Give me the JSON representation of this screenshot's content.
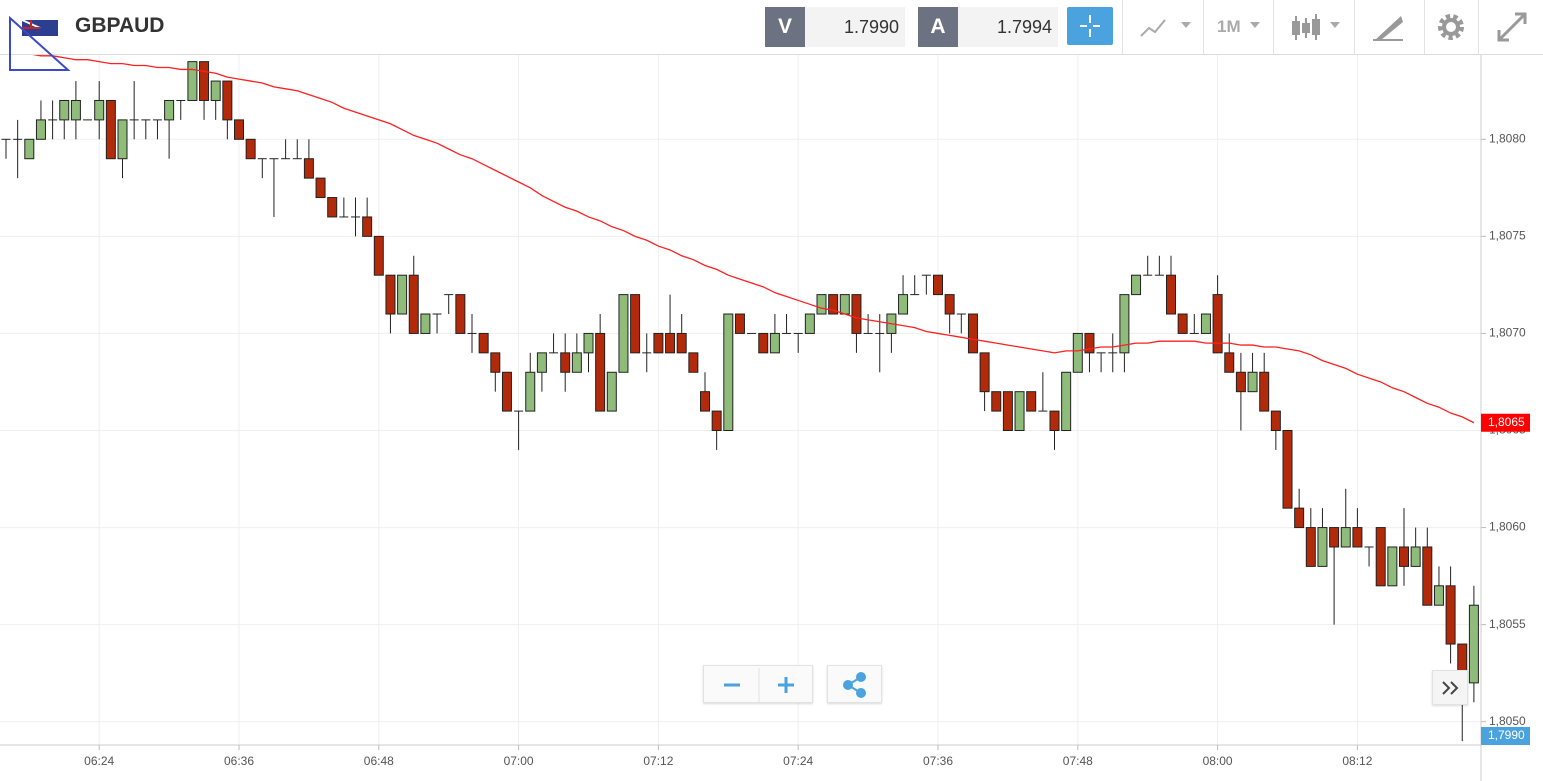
{
  "header": {
    "symbol": "GBPAUD",
    "bid_label": "V",
    "bid": "1.7990",
    "ask_label": "A",
    "ask": "1.7994",
    "interval": "1M"
  },
  "chart_data": {
    "type": "candlestick",
    "categories": [
      null,
      null,
      null,
      null,
      null,
      null,
      null,
      null,
      "06:24",
      null,
      null,
      null,
      null,
      null,
      null,
      null,
      null,
      null,
      null,
      null,
      "06:36",
      null,
      null,
      null,
      null,
      null,
      null,
      null,
      null,
      null,
      null,
      null,
      "06:48",
      null,
      null,
      null,
      null,
      null,
      null,
      null,
      null,
      null,
      null,
      null,
      "07:00",
      null,
      null,
      null,
      null,
      null,
      null,
      null,
      null,
      null,
      null,
      null,
      "07:12",
      null,
      null,
      null,
      null,
      null,
      null,
      null,
      null,
      null,
      null,
      null,
      "07:24",
      null,
      null,
      null,
      null,
      null,
      null,
      null,
      null,
      null,
      null,
      null,
      "07:36",
      null,
      null,
      null,
      null,
      null,
      null,
      null,
      null,
      null,
      null,
      null,
      "07:48",
      null,
      null,
      null,
      null,
      null,
      null,
      null,
      null,
      null,
      null,
      null,
      "08:00",
      null,
      null,
      null,
      null,
      null,
      null,
      null,
      null,
      null,
      null,
      null,
      "08:12",
      null,
      null,
      null,
      null,
      null,
      null,
      null,
      null,
      null,
      null
    ],
    "open": [
      1.808,
      1.808,
      1.8079,
      1.808,
      1.8081,
      1.8081,
      1.8081,
      1.8081,
      1.8081,
      1.8082,
      1.8079,
      1.8081,
      1.8081,
      1.8081,
      1.8081,
      1.8082,
      1.8082,
      1.8084,
      1.8082,
      1.8083,
      1.8081,
      1.808,
      1.8079,
      1.8079,
      1.8079,
      1.8079,
      1.8079,
      1.8078,
      1.8077,
      1.8076,
      1.8076,
      1.8076,
      1.8075,
      1.8073,
      1.8071,
      1.8073,
      1.807,
      1.8071,
      1.8072,
      1.8072,
      1.807,
      1.807,
      1.8069,
      1.8068,
      1.8066,
      1.8066,
      1.8068,
      1.8069,
      1.8069,
      1.8068,
      1.8069,
      1.807,
      1.8066,
      1.8068,
      1.8072,
      1.8069,
      1.807,
      1.807,
      1.807,
      1.8069,
      1.8067,
      1.8066,
      1.8065,
      1.8071,
      1.807,
      1.807,
      1.8069,
      1.807,
      1.807,
      1.807,
      1.8071,
      1.8072,
      1.8071,
      1.8072,
      1.807,
      1.807,
      1.807,
      1.8071,
      1.8072,
      1.8073,
      1.8073,
      1.8072,
      1.8071,
      1.8071,
      1.8069,
      1.8067,
      1.8067,
      1.8065,
      1.8067,
      1.8066,
      1.8066,
      1.8065,
      1.8068,
      1.807,
      1.8069,
      1.8069,
      1.8069,
      1.8072,
      1.8073,
      1.8073,
      1.8073,
      1.8071,
      1.807,
      1.807,
      1.8072,
      1.8069,
      1.8068,
      1.8067,
      1.8068,
      1.8066,
      1.8065,
      1.8061,
      1.806,
      1.8058,
      1.806,
      1.8059,
      1.806,
      1.8059,
      1.806,
      1.8057,
      1.8059,
      1.8058,
      1.8059,
      1.8056,
      1.8057,
      1.8054,
      1.8052
    ],
    "high": [
      1.808,
      1.8081,
      1.808,
      1.8082,
      1.8082,
      1.8082,
      1.8083,
      1.8081,
      1.8083,
      1.8082,
      1.8081,
      1.8083,
      1.8081,
      1.8081,
      1.8082,
      1.8082,
      1.8084,
      1.8084,
      1.8083,
      1.8083,
      1.8081,
      1.808,
      1.8079,
      1.8079,
      1.808,
      1.808,
      1.808,
      1.8078,
      1.8077,
      1.8077,
      1.8077,
      1.8077,
      1.8075,
      1.8073,
      1.8073,
      1.8074,
      1.8071,
      1.8071,
      1.8072,
      1.8072,
      1.8071,
      1.807,
      1.8069,
      1.8068,
      1.8066,
      1.8069,
      1.8069,
      1.807,
      1.807,
      1.807,
      1.807,
      1.8071,
      1.8068,
      1.8072,
      1.8072,
      1.807,
      1.807,
      1.8072,
      1.8071,
      1.8069,
      1.8068,
      1.8066,
      1.8071,
      1.8071,
      1.807,
      1.807,
      1.8071,
      1.8071,
      1.807,
      1.8071,
      1.8072,
      1.8072,
      1.8072,
      1.8072,
      1.8071,
      1.8071,
      1.8071,
      1.8073,
      1.8073,
      1.8073,
      1.8073,
      1.8072,
      1.8071,
      1.8071,
      1.8069,
      1.8067,
      1.8067,
      1.8067,
      1.8067,
      1.8068,
      1.8066,
      1.8068,
      1.807,
      1.807,
      1.8069,
      1.807,
      1.8072,
      1.8073,
      1.8074,
      1.8074,
      1.8074,
      1.8071,
      1.8071,
      1.8071,
      1.8073,
      1.807,
      1.8069,
      1.8069,
      1.8069,
      1.8066,
      1.8065,
      1.8062,
      1.8061,
      1.8061,
      1.806,
      1.8062,
      1.8061,
      1.8059,
      1.806,
      1.8059,
      1.8061,
      1.806,
      1.806,
      1.8058,
      1.8058,
      1.8054,
      1.8057
    ],
    "low": [
      1.8079,
      1.8078,
      1.8079,
      1.808,
      1.808,
      1.808,
      1.808,
      1.8081,
      1.808,
      1.8079,
      1.8078,
      1.808,
      1.808,
      1.808,
      1.8079,
      1.8081,
      1.8082,
      1.8081,
      1.8081,
      1.808,
      1.808,
      1.8079,
      1.8078,
      1.8076,
      1.8079,
      1.8079,
      1.8078,
      1.8077,
      1.8076,
      1.8076,
      1.8075,
      1.8075,
      1.8073,
      1.807,
      1.8071,
      1.807,
      1.807,
      1.807,
      1.8071,
      1.807,
      1.8069,
      1.8069,
      1.8067,
      1.8066,
      1.8064,
      1.8066,
      1.8067,
      1.8069,
      1.8067,
      1.8068,
      1.8068,
      1.8066,
      1.8066,
      1.8068,
      1.8069,
      1.8068,
      1.8069,
      1.8069,
      1.8069,
      1.8068,
      1.8066,
      1.8064,
      1.8065,
      1.807,
      1.807,
      1.8069,
      1.8069,
      1.807,
      1.8069,
      1.807,
      1.8071,
      1.8071,
      1.8071,
      1.8069,
      1.807,
      1.8068,
      1.8069,
      1.8071,
      1.8072,
      1.8072,
      1.8072,
      1.807,
      1.807,
      1.8069,
      1.8066,
      1.8066,
      1.8065,
      1.8065,
      1.8066,
      1.8066,
      1.8064,
      1.8065,
      1.8068,
      1.8068,
      1.8068,
      1.8068,
      1.8068,
      1.8072,
      1.8073,
      1.8073,
      1.8071,
      1.807,
      1.807,
      1.807,
      1.8069,
      1.8068,
      1.8065,
      1.8067,
      1.8066,
      1.8064,
      1.8061,
      1.806,
      1.8058,
      1.8058,
      1.8055,
      1.8059,
      1.8059,
      1.8058,
      1.8057,
      1.8057,
      1.8057,
      1.8058,
      1.8056,
      1.8056,
      1.8053,
      1.8049,
      1.8051
    ],
    "close": [
      1.808,
      1.808,
      1.808,
      1.8081,
      1.8081,
      1.8082,
      1.8082,
      1.8081,
      1.8082,
      1.8079,
      1.8081,
      1.8081,
      1.8081,
      1.8081,
      1.8082,
      1.8082,
      1.8084,
      1.8082,
      1.8083,
      1.8081,
      1.808,
      1.8079,
      1.8079,
      1.8079,
      1.8079,
      1.8079,
      1.8078,
      1.8077,
      1.8076,
      1.8076,
      1.8076,
      1.8075,
      1.8073,
      1.8071,
      1.8073,
      1.807,
      1.8071,
      1.8071,
      1.8072,
      1.807,
      1.807,
      1.8069,
      1.8068,
      1.8066,
      1.8066,
      1.8068,
      1.8069,
      1.8069,
      1.8068,
      1.8069,
      1.807,
      1.8066,
      1.8068,
      1.8072,
      1.8069,
      1.8069,
      1.8069,
      1.8069,
      1.8069,
      1.8068,
      1.8066,
      1.8065,
      1.8071,
      1.807,
      1.807,
      1.8069,
      1.807,
      1.807,
      1.807,
      1.8071,
      1.8072,
      1.8071,
      1.8072,
      1.807,
      1.807,
      1.807,
      1.8071,
      1.8072,
      1.8072,
      1.8073,
      1.8072,
      1.8071,
      1.8071,
      1.8069,
      1.8067,
      1.8066,
      1.8065,
      1.8067,
      1.8066,
      1.8066,
      1.8065,
      1.8068,
      1.807,
      1.8069,
      1.8069,
      1.8069,
      1.8072,
      1.8073,
      1.8073,
      1.8073,
      1.8071,
      1.807,
      1.807,
      1.8071,
      1.8069,
      1.8068,
      1.8067,
      1.8068,
      1.8066,
      1.8065,
      1.8061,
      1.806,
      1.8058,
      1.806,
      1.8059,
      1.806,
      1.8059,
      1.8059,
      1.8057,
      1.8059,
      1.8058,
      1.8059,
      1.8056,
      1.8057,
      1.8054,
      1.8052,
      1.8056
    ],
    "up_color": "#8fbc7a",
    "down_color": "#b22a0a",
    "ma": {
      "color": "#ff2020",
      "values": [
        1.80845,
        1.80844,
        1.80844,
        1.80843,
        1.80843,
        1.80842,
        1.80841,
        1.80841,
        1.8084,
        1.80839,
        1.80839,
        1.80838,
        1.80838,
        1.80837,
        1.80837,
        1.80836,
        1.80836,
        1.80835,
        1.80834,
        1.80832,
        1.80831,
        1.8083,
        1.80829,
        1.80827,
        1.80826,
        1.80825,
        1.80823,
        1.80821,
        1.80819,
        1.80816,
        1.80814,
        1.80812,
        1.8081,
        1.80808,
        1.80805,
        1.80802,
        1.808,
        1.80798,
        1.80795,
        1.80792,
        1.8079,
        1.80787,
        1.80784,
        1.80781,
        1.80778,
        1.80775,
        1.80771,
        1.80768,
        1.80765,
        1.80763,
        1.8076,
        1.80758,
        1.80755,
        1.80753,
        1.8075,
        1.80748,
        1.80745,
        1.80743,
        1.8074,
        1.80738,
        1.80735,
        1.80733,
        1.8073,
        1.80728,
        1.80726,
        1.80724,
        1.80721,
        1.80719,
        1.80717,
        1.80715,
        1.80713,
        1.80712,
        1.8071,
        1.80708,
        1.80707,
        1.80706,
        1.80705,
        1.80704,
        1.80703,
        1.80701,
        1.807,
        1.80699,
        1.80698,
        1.80697,
        1.80696,
        1.80695,
        1.80694,
        1.80693,
        1.80692,
        1.80691,
        1.8069,
        1.80691,
        1.80691,
        1.80692,
        1.80693,
        1.80693,
        1.80694,
        1.80695,
        1.80695,
        1.80696,
        1.80696,
        1.80696,
        1.80696,
        1.80695,
        1.80695,
        1.80695,
        1.80694,
        1.80694,
        1.80693,
        1.80693,
        1.80692,
        1.80691,
        1.80689,
        1.80686,
        1.80684,
        1.80682,
        1.80679,
        1.80677,
        1.80675,
        1.80672,
        1.8067,
        1.80667,
        1.80664,
        1.80662,
        1.80659,
        1.80657,
        1.80654
      ]
    },
    "ylim": [
      1.80488,
      1.80846
    ],
    "yticks": [
      {
        "value": 1.805,
        "label": "1,8050"
      },
      {
        "value": 1.8055,
        "label": "1,8055"
      },
      {
        "value": 1.806,
        "label": "1,8060"
      },
      {
        "value": 1.8065,
        "label": "1,8065"
      },
      {
        "value": 1.807,
        "label": "1,8070"
      },
      {
        "value": 1.8075,
        "label": "1,8075"
      },
      {
        "value": 1.808,
        "label": "1,8080"
      }
    ],
    "grid": true,
    "price_labels": [
      {
        "label": "1,8065",
        "color": "#ff0000"
      },
      {
        "label": "1,7990",
        "color": "#4aa3df"
      }
    ]
  }
}
